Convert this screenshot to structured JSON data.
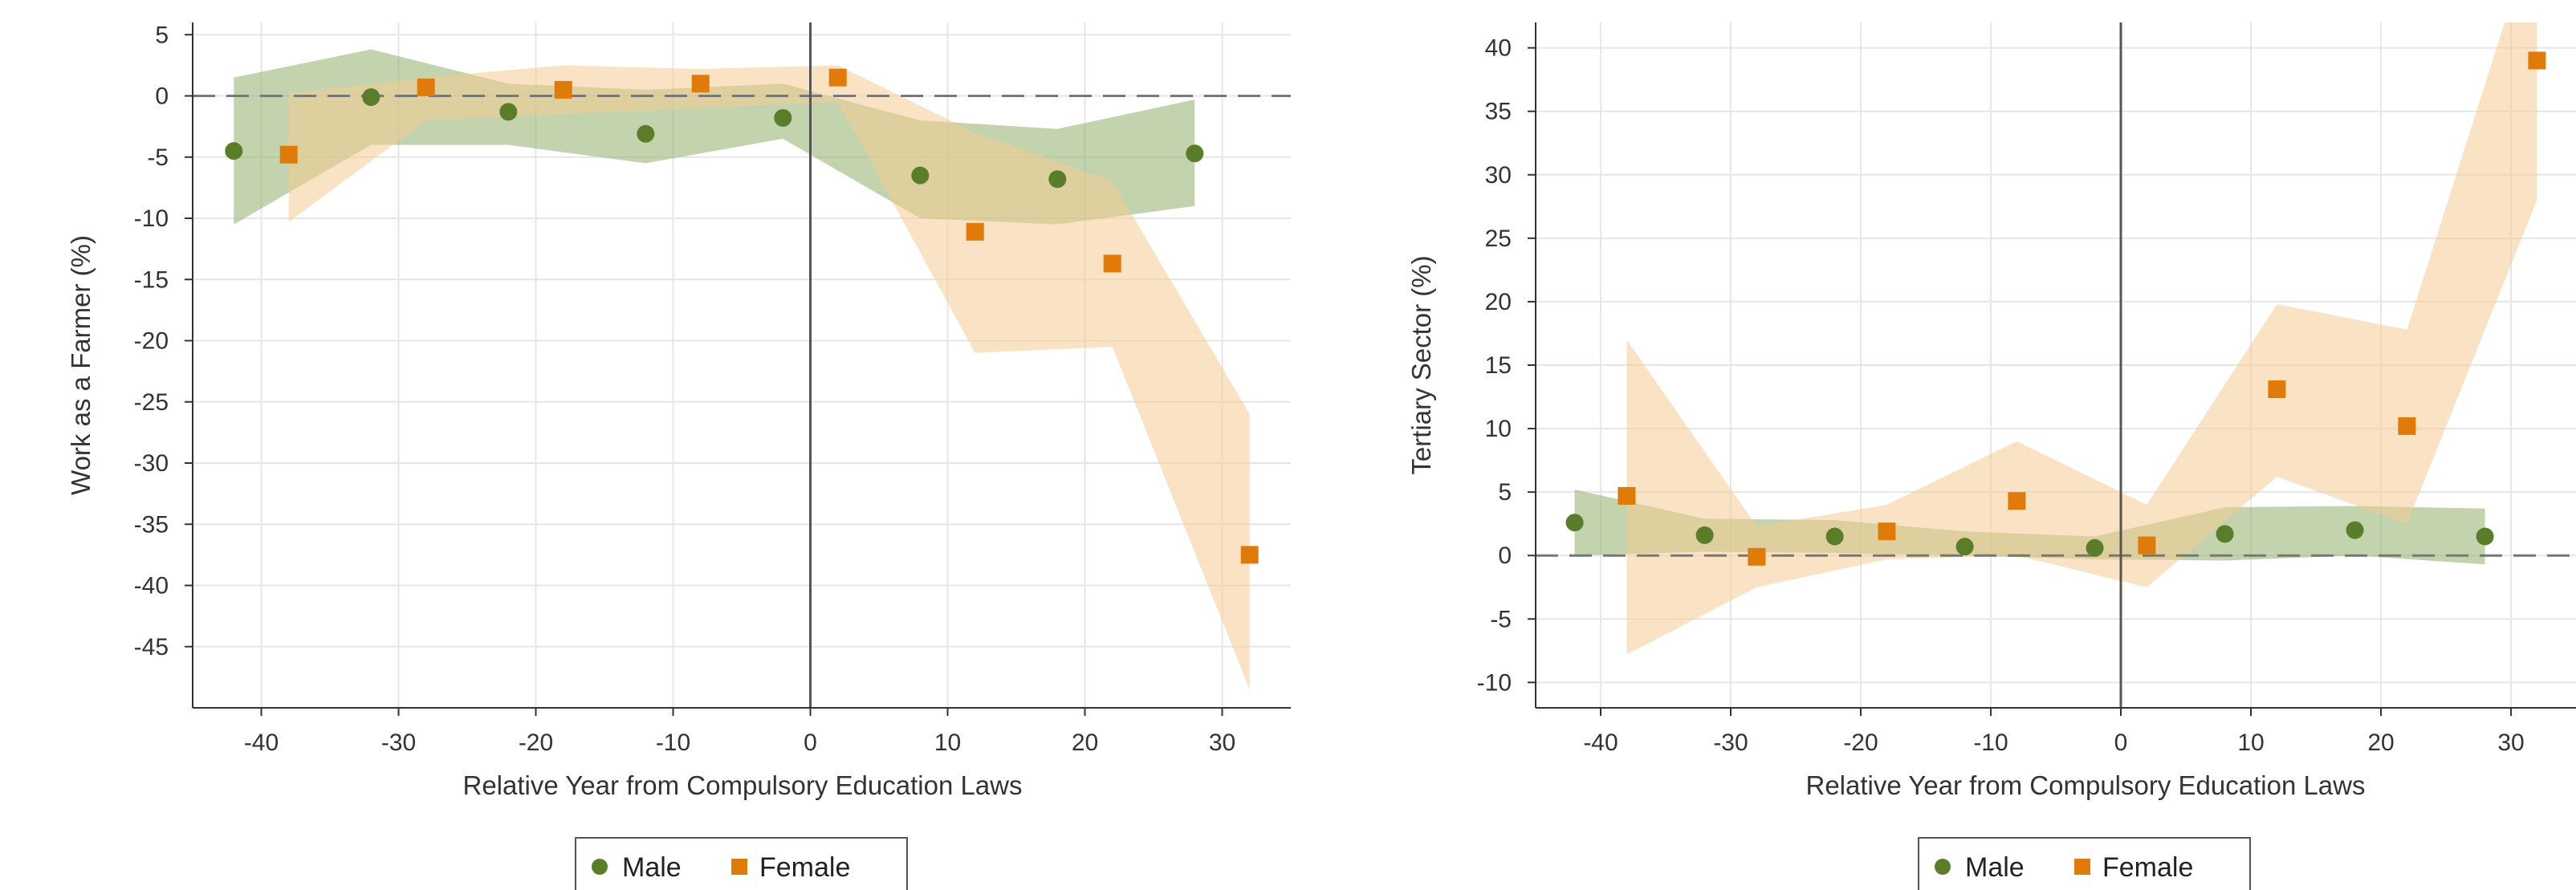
{
  "chart_data": [
    {
      "type": "scatter",
      "ylabel": "Work as a Farmer (%)",
      "xlabel": "Relative Year from Compulsory Education Laws",
      "xlim": [
        -45,
        35
      ],
      "ylim": [
        -50,
        6
      ],
      "x_ticks": [
        -40,
        -30,
        -20,
        -10,
        0,
        10,
        20,
        30
      ],
      "x_tick_labels": [
        "-40",
        "-30",
        "-20",
        "-10",
        "0",
        "10",
        "20",
        "30"
      ],
      "y_ticks": [
        5,
        0,
        -5,
        -10,
        -15,
        -20,
        -25,
        -30,
        -35,
        -40,
        -45
      ],
      "y_tick_labels": [
        "5",
        "0",
        "-5",
        "-10",
        "-15",
        "-20",
        "-25",
        "-30",
        "-35",
        "-40",
        "-45"
      ],
      "grid": true,
      "reference_lines": {
        "horizontal_y": 0,
        "vertical_x": 0
      },
      "legend": {
        "position": "bottom"
      },
      "series": [
        {
          "name": "Male",
          "marker": "circle",
          "color": "#5a7d2a",
          "band_color": "#8fae6c",
          "x": [
            -42,
            -32,
            -22,
            -12,
            -2,
            8,
            18,
            28
          ],
          "values": [
            -4.5,
            -0.1,
            -1.3,
            -3.1,
            -1.8,
            -6.5,
            -6.8,
            -4.7
          ],
          "ci_lower": [
            -10.5,
            -4.0,
            -4.0,
            -5.5,
            -3.5,
            -10.0,
            -10.5,
            -9.0
          ],
          "ci_upper": [
            1.5,
            3.8,
            1.0,
            0.5,
            1.0,
            -2.0,
            -2.7,
            -0.3
          ]
        },
        {
          "name": "Female",
          "marker": "square",
          "color": "#e07b0a",
          "band_color": "#f6cc94",
          "x": [
            -38,
            -28,
            -18,
            -8,
            2,
            12,
            22,
            32
          ],
          "values": [
            -4.8,
            0.7,
            0.5,
            1.0,
            1.5,
            -11.1,
            -13.7,
            -37.5
          ],
          "ci_lower": [
            -10.3,
            -2.0,
            -1.5,
            -1.0,
            -0.5,
            -21.0,
            -20.5,
            -48.5
          ],
          "ci_upper": [
            0.2,
            1.5,
            2.5,
            2.2,
            2.5,
            -3.0,
            -7.0,
            -26.0
          ]
        }
      ]
    },
    {
      "type": "scatter",
      "ylabel": "Tertiary Sector (%)",
      "xlabel": "Relative Year from Compulsory Education Laws",
      "xlim": [
        -45,
        35
      ],
      "ylim": [
        -12,
        42
      ],
      "x_ticks": [
        -40,
        -30,
        -20,
        -10,
        0,
        10,
        20,
        30
      ],
      "x_tick_labels": [
        "-40",
        "-30",
        "-20",
        "-10",
        "0",
        "10",
        "20",
        "30"
      ],
      "y_ticks": [
        40,
        35,
        30,
        25,
        20,
        15,
        10,
        5,
        0,
        -5,
        -10
      ],
      "y_tick_labels": [
        "40",
        "35",
        "30",
        "25",
        "20",
        "15",
        "10",
        "5",
        "0",
        "-5",
        "-10"
      ],
      "grid": true,
      "reference_lines": {
        "horizontal_y": 0,
        "vertical_x": 0
      },
      "legend": {
        "position": "bottom"
      },
      "series": [
        {
          "name": "Male",
          "marker": "circle",
          "color": "#5a7d2a",
          "band_color": "#8fae6c",
          "x": [
            -42,
            -32,
            -22,
            -12,
            -2,
            8,
            18,
            28
          ],
          "values": [
            2.6,
            1.6,
            1.5,
            0.7,
            0.6,
            1.7,
            2.0,
            1.5
          ],
          "ci_lower": [
            0.0,
            0.3,
            0.2,
            0.0,
            -0.3,
            -0.4,
            0.0,
            -0.7
          ],
          "ci_upper": [
            5.2,
            2.9,
            2.8,
            1.9,
            1.5,
            3.8,
            3.9,
            3.7
          ]
        },
        {
          "name": "Female",
          "marker": "square",
          "color": "#e07b0a",
          "band_color": "#f6cc94",
          "x": [
            -38,
            -28,
            -18,
            -8,
            2,
            12,
            22,
            32
          ],
          "values": [
            4.7,
            -0.1,
            1.9,
            4.3,
            0.8,
            13.1,
            10.2,
            39.0
          ],
          "ci_lower": [
            -7.8,
            -2.5,
            -0.3,
            0.0,
            -2.5,
            6.2,
            2.5,
            28.0
          ],
          "ci_upper": [
            17.0,
            2.3,
            4.0,
            9.0,
            4.0,
            19.8,
            17.8,
            50.0
          ]
        }
      ]
    }
  ]
}
